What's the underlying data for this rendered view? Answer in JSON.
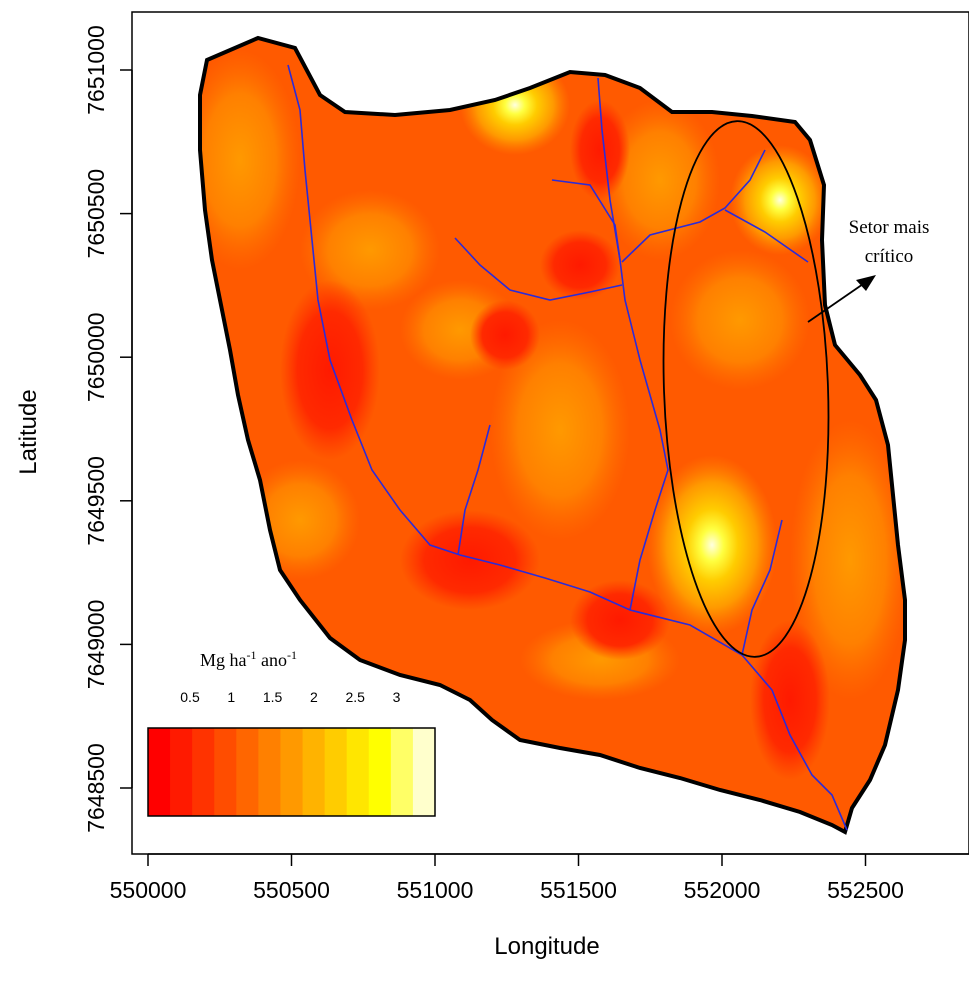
{
  "x_axis": {
    "label": "Longitude",
    "ticks": [
      "550000",
      "550500",
      "551000",
      "551500",
      "552000",
      "552500"
    ]
  },
  "y_axis": {
    "label": "Latitude",
    "ticks": [
      "7651000",
      "7650500",
      "7650000",
      "7649500",
      "7649000",
      "7648500"
    ]
  },
  "legend": {
    "unit_main": "Mg ha",
    "unit_sup1": "-1",
    "unit_mid": " ano",
    "unit_sup2": "-1",
    "tick_labels": [
      "0.5",
      "1",
      "1.5",
      "2",
      "2.5",
      "3"
    ],
    "colors": [
      "#ff0000",
      "#ff1a00",
      "#ff3300",
      "#ff4d00",
      "#ff6600",
      "#ff8000",
      "#ff9900",
      "#ffb300",
      "#ffcc00",
      "#ffe600",
      "#ffff00",
      "#ffff66",
      "#ffffcc"
    ]
  },
  "annotation": {
    "line1": "Setor mais",
    "line2": "crítico"
  },
  "colors": {
    "base_fill": "#ff5500",
    "river": "#2b2bd9",
    "outline": "#000000"
  }
}
